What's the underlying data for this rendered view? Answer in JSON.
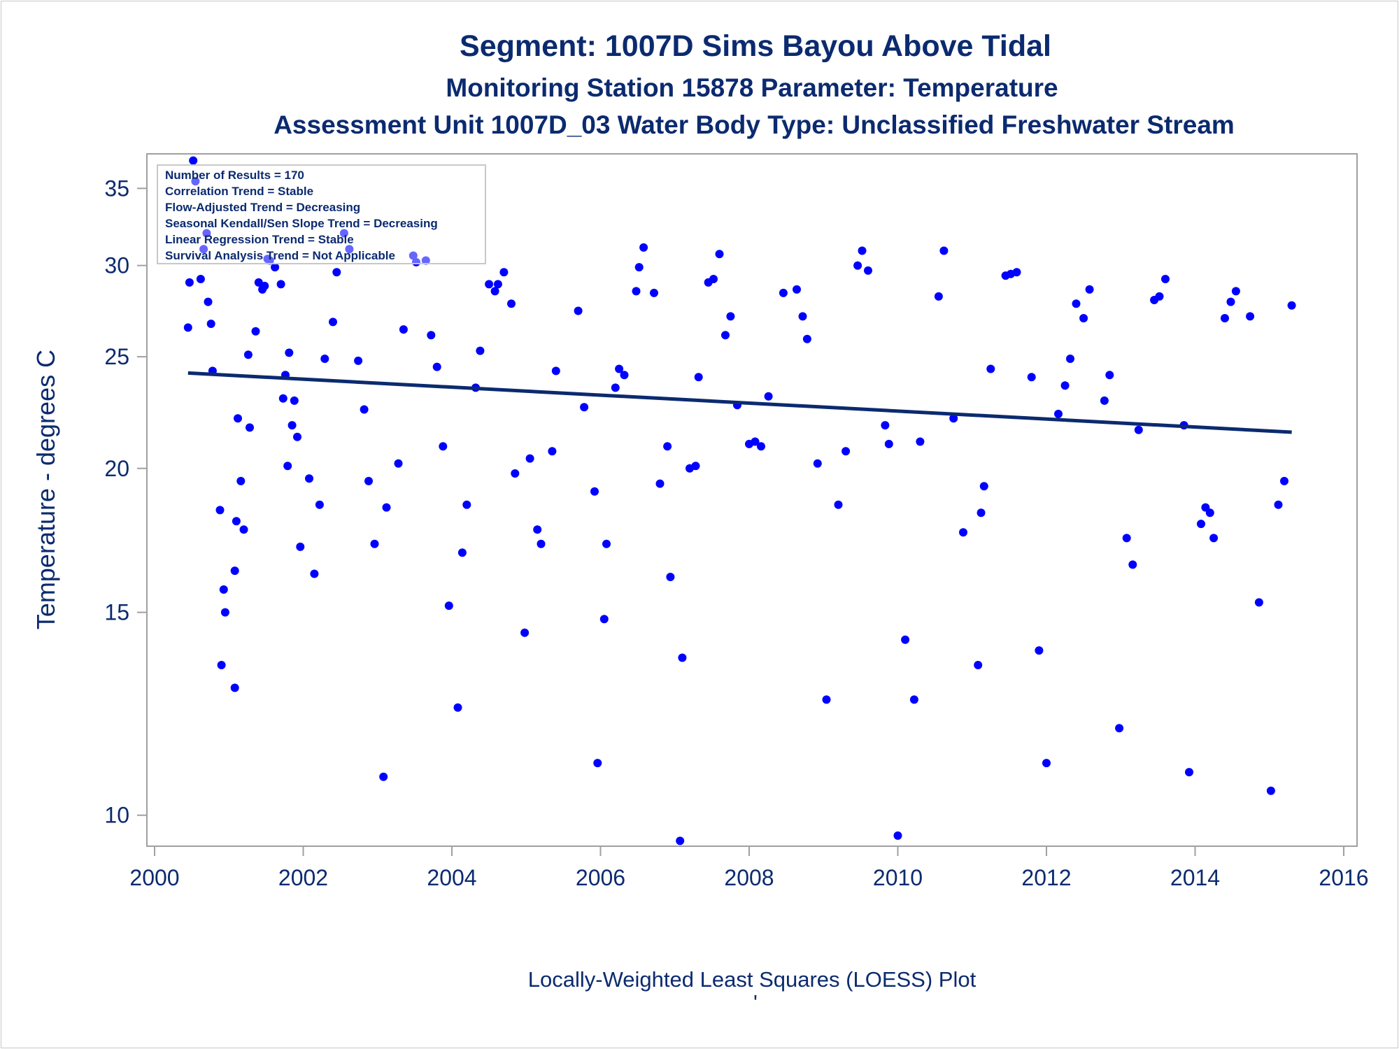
{
  "titles": {
    "line1": "Segment: 1007D  Sims Bayou Above Tidal",
    "line2": "Monitoring Station 15878 Parameter: Temperature",
    "line3": "Assessment Unit 1007D_03   Water Body Type: Unclassified Freshwater Stream"
  },
  "stats_box": [
    "Number of Results = 170",
    "Correlation Trend = Stable",
    "Flow-Adjusted Trend = Decreasing",
    "Seasonal Kendall/Sen Slope Trend = Decreasing",
    "Linear Regression Trend = Stable",
    "Survival Analysis Trend = Not Applicable"
  ],
  "footer": "Locally-Weighted Least Squares (LOESS) Plot",
  "colors": {
    "points": "#0000ff",
    "trend": "#0b2a6f",
    "text": "#0b2a6f",
    "frame": "#a0a0a0"
  },
  "chart_data": {
    "type": "scatter",
    "ylabel": "Temperature - degrees C",
    "xlabel": "",
    "y_scale": "log",
    "xlim": [
      2000,
      2016
    ],
    "ylim": [
      9.4,
      37.5
    ],
    "xticks": [
      2000,
      2002,
      2004,
      2006,
      2008,
      2010,
      2012,
      2014,
      2016
    ],
    "yticks": [
      10,
      15,
      20,
      25,
      30,
      35
    ],
    "trend_line": {
      "x": [
        2000.45,
        2015.3
      ],
      "y": [
        24.2,
        21.5
      ]
    },
    "points": [
      [
        2000.45,
        26.5
      ],
      [
        2000.47,
        29.0
      ],
      [
        2000.52,
        37.0
      ],
      [
        2000.55,
        35.5
      ],
      [
        2000.62,
        29.2
      ],
      [
        2000.66,
        31.0
      ],
      [
        2000.7,
        32.0
      ],
      [
        2000.72,
        27.9
      ],
      [
        2000.76,
        26.7
      ],
      [
        2000.78,
        24.3
      ],
      [
        2000.88,
        18.4
      ],
      [
        2000.9,
        13.5
      ],
      [
        2000.93,
        15.7
      ],
      [
        2000.95,
        15.0
      ],
      [
        2001.08,
        12.9
      ],
      [
        2001.08,
        16.3
      ],
      [
        2001.1,
        18.0
      ],
      [
        2001.12,
        22.1
      ],
      [
        2001.16,
        19.5
      ],
      [
        2001.2,
        17.7
      ],
      [
        2001.26,
        25.1
      ],
      [
        2001.28,
        21.7
      ],
      [
        2001.36,
        26.3
      ],
      [
        2001.4,
        29.0
      ],
      [
        2001.45,
        28.6
      ],
      [
        2001.48,
        28.8
      ],
      [
        2001.52,
        30.4
      ],
      [
        2001.55,
        30.3
      ],
      [
        2001.62,
        29.9
      ],
      [
        2001.7,
        28.9
      ],
      [
        2001.73,
        23.0
      ],
      [
        2001.76,
        24.1
      ],
      [
        2001.79,
        20.1
      ],
      [
        2001.81,
        25.2
      ],
      [
        2001.85,
        21.8
      ],
      [
        2001.88,
        22.9
      ],
      [
        2001.92,
        21.3
      ],
      [
        2001.96,
        17.1
      ],
      [
        2002.08,
        19.6
      ],
      [
        2002.15,
        16.2
      ],
      [
        2002.22,
        18.6
      ],
      [
        2002.29,
        24.9
      ],
      [
        2002.4,
        26.8
      ],
      [
        2002.45,
        29.6
      ],
      [
        2002.55,
        32.0
      ],
      [
        2002.62,
        31.0
      ],
      [
        2002.74,
        24.8
      ],
      [
        2002.82,
        22.5
      ],
      [
        2002.88,
        19.5
      ],
      [
        2002.96,
        17.2
      ],
      [
        2003.08,
        10.8
      ],
      [
        2003.12,
        18.5
      ],
      [
        2003.28,
        20.2
      ],
      [
        2003.35,
        26.4
      ],
      [
        2003.48,
        30.6
      ],
      [
        2003.52,
        30.2
      ],
      [
        2003.65,
        30.3
      ],
      [
        2003.72,
        26.1
      ],
      [
        2003.8,
        24.5
      ],
      [
        2003.88,
        20.9
      ],
      [
        2003.96,
        15.2
      ],
      [
        2004.08,
        12.4
      ],
      [
        2004.14,
        16.9
      ],
      [
        2004.2,
        18.6
      ],
      [
        2004.32,
        23.5
      ],
      [
        2004.38,
        25.3
      ],
      [
        2004.5,
        28.9
      ],
      [
        2004.58,
        28.5
      ],
      [
        2004.62,
        28.9
      ],
      [
        2004.7,
        29.6
      ],
      [
        2004.8,
        27.8
      ],
      [
        2004.85,
        19.8
      ],
      [
        2004.98,
        14.4
      ],
      [
        2005.05,
        20.4
      ],
      [
        2005.15,
        17.7
      ],
      [
        2005.2,
        17.2
      ],
      [
        2005.35,
        20.7
      ],
      [
        2005.4,
        24.3
      ],
      [
        2005.7,
        27.4
      ],
      [
        2005.78,
        22.6
      ],
      [
        2005.92,
        19.1
      ],
      [
        2005.96,
        11.1
      ],
      [
        2006.05,
        14.8
      ],
      [
        2006.08,
        17.2
      ],
      [
        2006.2,
        23.5
      ],
      [
        2006.25,
        24.4
      ],
      [
        2006.32,
        24.1
      ],
      [
        2006.48,
        28.5
      ],
      [
        2006.52,
        29.9
      ],
      [
        2006.58,
        31.1
      ],
      [
        2006.72,
        28.4
      ],
      [
        2006.8,
        19.4
      ],
      [
        2006.9,
        20.9
      ],
      [
        2006.94,
        16.1
      ],
      [
        2007.07,
        9.5
      ],
      [
        2007.1,
        13.7
      ],
      [
        2007.2,
        20.0
      ],
      [
        2007.28,
        20.1
      ],
      [
        2007.32,
        24.0
      ],
      [
        2007.45,
        29.0
      ],
      [
        2007.52,
        29.2
      ],
      [
        2007.6,
        30.7
      ],
      [
        2007.68,
        26.1
      ],
      [
        2007.75,
        27.1
      ],
      [
        2007.84,
        22.7
      ],
      [
        2008.0,
        21.0
      ],
      [
        2008.08,
        21.1
      ],
      [
        2008.16,
        20.9
      ],
      [
        2008.26,
        23.1
      ],
      [
        2008.46,
        28.4
      ],
      [
        2008.64,
        28.6
      ],
      [
        2008.72,
        27.1
      ],
      [
        2008.78,
        25.9
      ],
      [
        2008.92,
        20.2
      ],
      [
        2009.04,
        12.6
      ],
      [
        2009.2,
        18.6
      ],
      [
        2009.3,
        20.7
      ],
      [
        2009.46,
        30.0
      ],
      [
        2009.52,
        30.9
      ],
      [
        2009.6,
        29.7
      ],
      [
        2009.83,
        21.8
      ],
      [
        2009.88,
        21.0
      ],
      [
        2010.0,
        9.6
      ],
      [
        2010.1,
        14.2
      ],
      [
        2010.22,
        12.6
      ],
      [
        2010.3,
        21.1
      ],
      [
        2010.55,
        28.2
      ],
      [
        2010.62,
        30.9
      ],
      [
        2010.75,
        22.1
      ],
      [
        2010.88,
        17.6
      ],
      [
        2011.08,
        13.5
      ],
      [
        2011.12,
        18.3
      ],
      [
        2011.16,
        19.3
      ],
      [
        2011.25,
        24.4
      ],
      [
        2011.45,
        29.4
      ],
      [
        2011.52,
        29.5
      ],
      [
        2011.6,
        29.6
      ],
      [
        2011.8,
        24.0
      ],
      [
        2011.9,
        13.9
      ],
      [
        2012.0,
        11.1
      ],
      [
        2012.16,
        22.3
      ],
      [
        2012.25,
        23.6
      ],
      [
        2012.32,
        24.9
      ],
      [
        2012.4,
        27.8
      ],
      [
        2012.5,
        27.0
      ],
      [
        2012.58,
        28.6
      ],
      [
        2012.78,
        22.9
      ],
      [
        2012.85,
        24.1
      ],
      [
        2012.98,
        11.9
      ],
      [
        2013.08,
        17.4
      ],
      [
        2013.16,
        16.5
      ],
      [
        2013.24,
        21.6
      ],
      [
        2013.45,
        28.0
      ],
      [
        2013.52,
        28.2
      ],
      [
        2013.6,
        29.2
      ],
      [
        2013.85,
        21.8
      ],
      [
        2013.92,
        10.9
      ],
      [
        2014.08,
        17.9
      ],
      [
        2014.14,
        18.5
      ],
      [
        2014.2,
        18.3
      ],
      [
        2014.25,
        17.4
      ],
      [
        2014.4,
        27.0
      ],
      [
        2014.48,
        27.9
      ],
      [
        2014.55,
        28.5
      ],
      [
        2014.74,
        27.1
      ],
      [
        2014.86,
        15.3
      ],
      [
        2015.02,
        10.5
      ],
      [
        2015.12,
        18.6
      ],
      [
        2015.2,
        19.5
      ],
      [
        2015.3,
        27.7
      ]
    ]
  }
}
